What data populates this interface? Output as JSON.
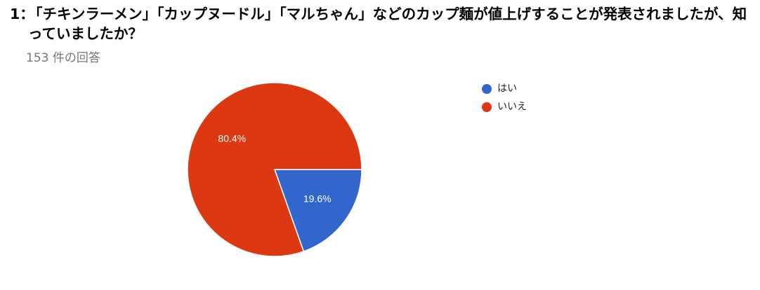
{
  "chart_data": {
    "type": "pie",
    "question_number": "1：",
    "title": "「チキンラーメン」「カップヌードル」「マルちゃん」などのカップ麺が値上げすることが発表されましたが、知っていましたか？",
    "subtitle": "153 件の回答",
    "categories": [
      "はい",
      "いいえ"
    ],
    "values": [
      19.6,
      80.4
    ],
    "value_labels": [
      "19.6%",
      "80.4%"
    ],
    "colors": [
      "#3366cc",
      "#dc3912"
    ]
  }
}
